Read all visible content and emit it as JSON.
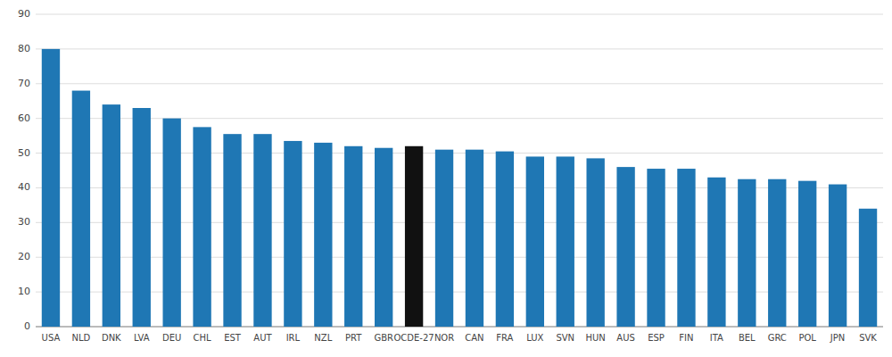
{
  "chart_data": {
    "type": "bar",
    "categories": [
      "USA",
      "NLD",
      "DNK",
      "LVA",
      "DEU",
      "CHL",
      "EST",
      "AUT",
      "IRL",
      "NZL",
      "PRT",
      "GBR",
      "OCDE-27",
      "NOR",
      "CAN",
      "FRA",
      "LUX",
      "SVN",
      "HUN",
      "AUS",
      "ESP",
      "FIN",
      "ITA",
      "BEL",
      "GRC",
      "POL",
      "JPN",
      "SVK"
    ],
    "values": [
      80,
      68,
      64,
      63,
      60,
      57.5,
      55.5,
      55.5,
      53.5,
      53,
      52,
      51.5,
      52,
      51,
      51,
      50.5,
      49,
      49,
      48.5,
      46,
      45.5,
      45.5,
      43,
      42.5,
      42.5,
      42,
      41,
      34
    ],
    "colors": [
      "#1f77b4",
      "#1f77b4",
      "#1f77b4",
      "#1f77b4",
      "#1f77b4",
      "#1f77b4",
      "#1f77b4",
      "#1f77b4",
      "#1f77b4",
      "#1f77b4",
      "#1f77b4",
      "#1f77b4",
      "#111111",
      "#1f77b4",
      "#1f77b4",
      "#1f77b4",
      "#1f77b4",
      "#1f77b4",
      "#1f77b4",
      "#1f77b4",
      "#1f77b4",
      "#1f77b4",
      "#1f77b4",
      "#1f77b4",
      "#1f77b4",
      "#1f77b4",
      "#1f77b4",
      "#1f77b4"
    ],
    "ylim": [
      0,
      90
    ],
    "yticks": [
      0,
      10,
      20,
      30,
      40,
      50,
      60,
      70,
      80,
      90
    ],
    "grid": true
  }
}
